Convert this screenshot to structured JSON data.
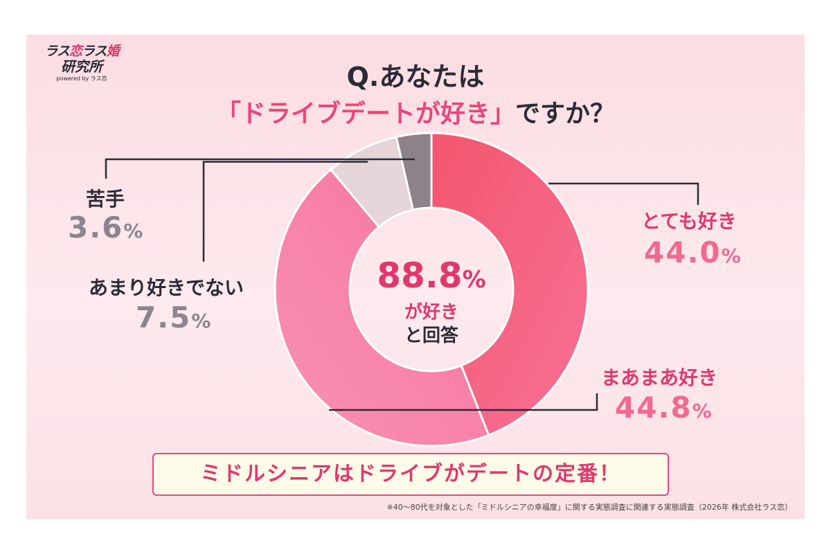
{
  "logo": {
    "line1_a": "ラス",
    "line1_b": "恋",
    "line1_c": "ラス",
    "line1_d": "婚",
    "line2": "研究所",
    "sub": "powered by ラス恋"
  },
  "question": {
    "line1": "Q.あなたは",
    "highlight": "「ドライブデートが好き」",
    "suffix": "ですか？"
  },
  "chart_data": {
    "type": "pie",
    "categories": [
      "とても好き",
      "まあまあ好き",
      "あまり好きでない",
      "苦手"
    ],
    "values": [
      44.0,
      44.8,
      7.5,
      3.6
    ],
    "value_labels": [
      "44.0",
      "44.8",
      "7.5",
      "3.6"
    ],
    "unit": "%",
    "colors": [
      "#f25b81",
      "#f77fa6",
      "#e5d4d8",
      "#8d8289"
    ],
    "style": "donut",
    "center": {
      "value": "88.8",
      "unit": "%",
      "line1": "が好き",
      "line2": "と回答"
    }
  },
  "banner": "ミドルシニアはドライブがデートの定番！",
  "footnote": "※40～80代を対象とした「ミドルシニアの幸福度」に関する実態調査に関連する実態調査（2026年 株式会社ラス恋）"
}
